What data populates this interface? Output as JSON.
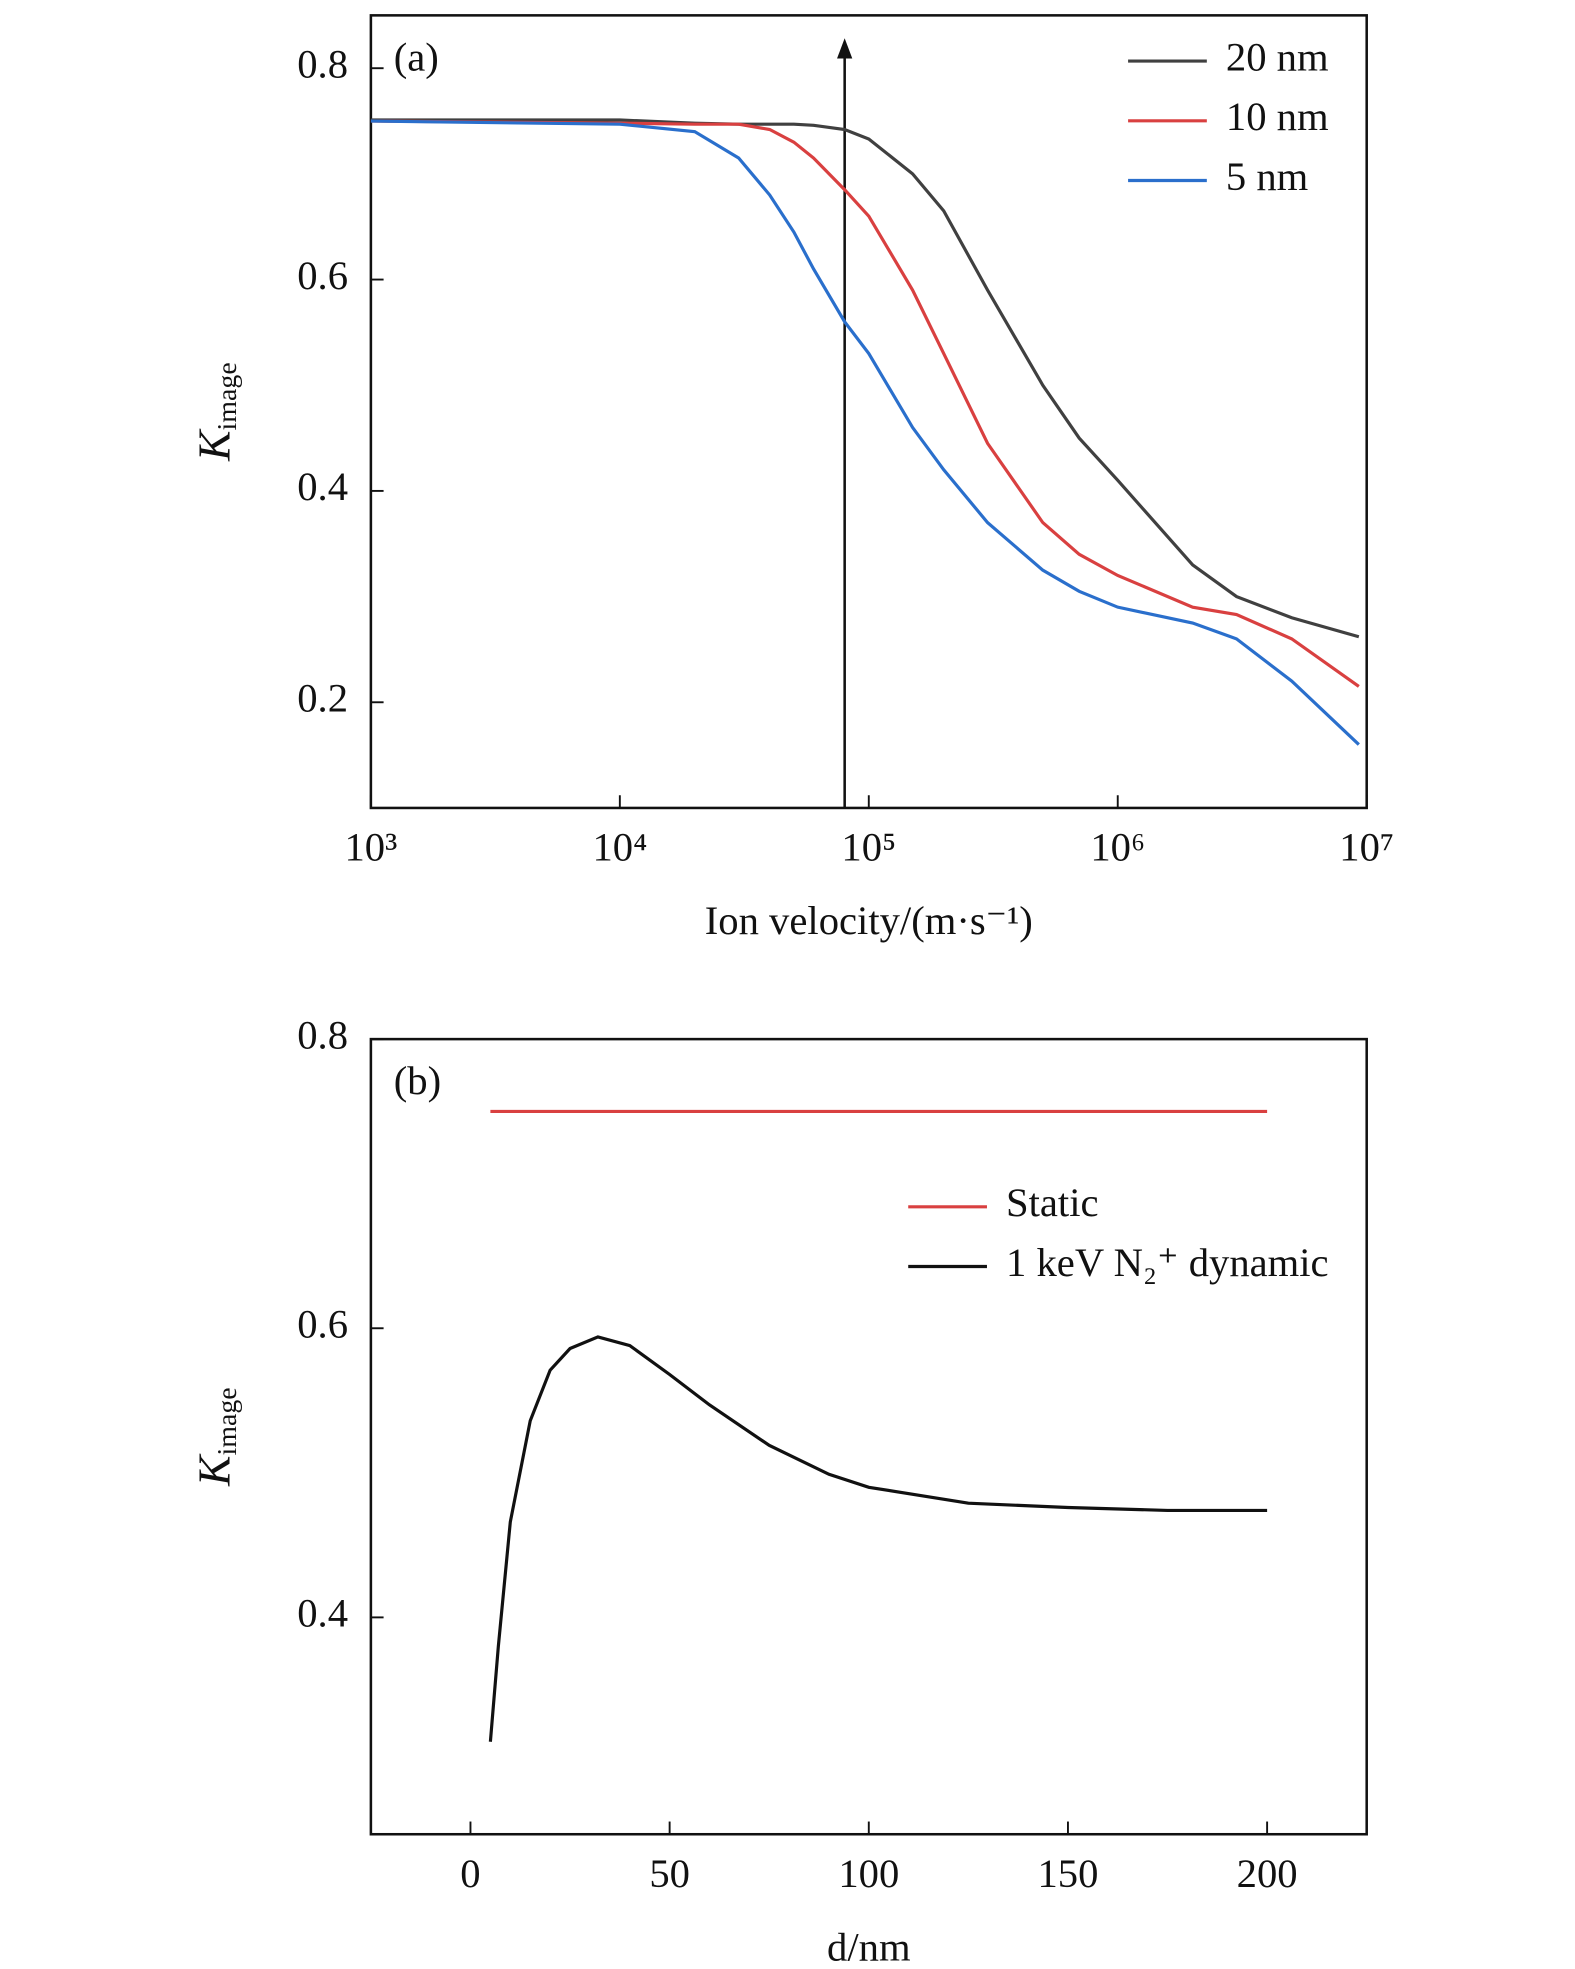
{
  "chart_data": [
    {
      "type": "line",
      "panel_label": "(a)",
      "xscale": "log",
      "xlabel": "Ion velocity/(m·s⁻¹)",
      "ylabel": {
        "main": "K",
        "sub": "image"
      },
      "xlim": [
        1000,
        10000000
      ],
      "ylim": [
        0.1,
        0.85
      ],
      "xticks": [
        {
          "value": 1000,
          "label": "10³"
        },
        {
          "value": 10000,
          "label": "10⁴"
        },
        {
          "value": 100000,
          "label": "10⁵"
        },
        {
          "value": 1000000,
          "label": "10⁶"
        },
        {
          "value": 10000000,
          "label": "10⁷"
        }
      ],
      "yticks": [
        0.2,
        0.4,
        0.6,
        0.8
      ],
      "legend": "upper right",
      "annotations": [
        {
          "type": "arrow",
          "x": 80000
        }
      ],
      "series": [
        {
          "name": "20 nm",
          "color": "#404040",
          "x": [
            1000,
            10000,
            20000,
            30000,
            40000,
            50000,
            60000,
            80000,
            100000,
            150000,
            200000,
            300000,
            500000,
            700000,
            1000000,
            2000000,
            3000000,
            5000000,
            9300000
          ],
          "values": [
            0.751,
            0.751,
            0.748,
            0.747,
            0.747,
            0.747,
            0.746,
            0.742,
            0.733,
            0.7,
            0.665,
            0.59,
            0.5,
            0.45,
            0.41,
            0.33,
            0.3,
            0.28,
            0.262
          ]
        },
        {
          "name": "10 nm",
          "color": "#d94040",
          "x": [
            1000,
            10000,
            20000,
            30000,
            40000,
            50000,
            60000,
            80000,
            100000,
            150000,
            200000,
            300000,
            500000,
            700000,
            1000000,
            2000000,
            3000000,
            5000000,
            9300000
          ],
          "values": [
            0.75,
            0.748,
            0.747,
            0.747,
            0.742,
            0.73,
            0.715,
            0.685,
            0.66,
            0.59,
            0.53,
            0.445,
            0.37,
            0.34,
            0.32,
            0.29,
            0.283,
            0.26,
            0.215
          ]
        },
        {
          "name": "5 nm",
          "color": "#2a6fcc",
          "x": [
            1000,
            10000,
            20000,
            30000,
            40000,
            50000,
            60000,
            80000,
            100000,
            150000,
            200000,
            300000,
            500000,
            700000,
            1000000,
            2000000,
            3000000,
            5000000,
            9300000
          ],
          "values": [
            0.75,
            0.747,
            0.74,
            0.715,
            0.68,
            0.645,
            0.61,
            0.56,
            0.53,
            0.46,
            0.42,
            0.37,
            0.325,
            0.305,
            0.29,
            0.275,
            0.26,
            0.22,
            0.16
          ]
        }
      ]
    },
    {
      "type": "line",
      "panel_label": "(b)",
      "xscale": "linear",
      "xlabel": "d/nm",
      "ylabel": {
        "main": "K",
        "sub": "image"
      },
      "xlim": [
        -25,
        225
      ],
      "ylim": [
        0.25,
        0.8
      ],
      "xticks": [
        0,
        50,
        100,
        150,
        200
      ],
      "yticks": [
        0.4,
        0.6,
        0.8
      ],
      "legend": "center right",
      "series": [
        {
          "name": "Static",
          "color": "#d94040",
          "x": [
            5,
            200
          ],
          "values": [
            0.75,
            0.75
          ]
        },
        {
          "name": "1 keV N₂⁺ dynamic",
          "color": "#111111",
          "x": [
            5,
            7,
            10,
            15,
            20,
            25,
            32,
            40,
            50,
            60,
            75,
            90,
            100,
            125,
            150,
            175,
            200
          ],
          "values": [
            0.314,
            0.38,
            0.466,
            0.536,
            0.571,
            0.586,
            0.594,
            0.588,
            0.568,
            0.547,
            0.519,
            0.499,
            0.49,
            0.479,
            0.476,
            0.474,
            0.474
          ]
        }
      ]
    }
  ]
}
